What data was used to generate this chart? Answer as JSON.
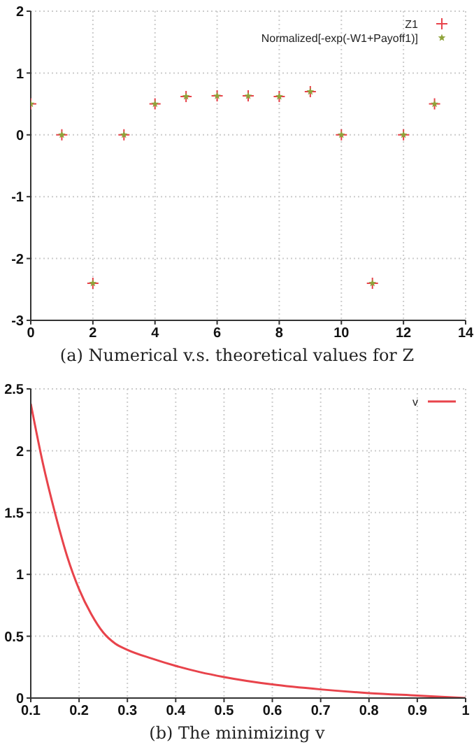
{
  "chart_data": [
    {
      "type": "scatter",
      "x": [
        0,
        1,
        2,
        3,
        4,
        5,
        6,
        7,
        8,
        9,
        10,
        11,
        12,
        13
      ],
      "series": [
        {
          "name": "Z1",
          "color": "#e8434b",
          "marker": "cross",
          "values": [
            0.5,
            0,
            -2.4,
            0,
            0.5,
            0.62,
            0.63,
            0.63,
            0.62,
            0.7,
            0,
            -2.4,
            0,
            0.5
          ]
        },
        {
          "name": "Normalized[-exp(-W1+Payoff1)]",
          "color": "#8fa33a",
          "marker": "star",
          "values": [
            0.5,
            0,
            -2.4,
            0,
            0.5,
            0.62,
            0.63,
            0.63,
            0.62,
            0.7,
            0,
            -2.4,
            0,
            0.5
          ]
        }
      ],
      "xlim": [
        0,
        14
      ],
      "xticks": [
        0,
        2,
        4,
        6,
        8,
        10,
        12,
        14
      ],
      "ylim": [
        -3,
        2
      ],
      "yticks": [
        -3,
        -2,
        -1,
        0,
        1,
        2
      ],
      "grid": true,
      "legend": "top right",
      "annotations": [
        "(a) Numerical v.s. theoretical values for Z"
      ]
    },
    {
      "type": "line",
      "x": [
        0.1,
        0.125,
        0.15,
        0.175,
        0.2,
        0.225,
        0.25,
        0.275,
        0.3,
        0.35,
        0.4,
        0.45,
        0.5,
        0.6,
        0.7,
        0.8,
        0.9,
        1
      ],
      "series": [
        {
          "name": "v",
          "color": "#e8434b",
          "values": [
            2.38,
            1.9,
            1.5,
            1.15,
            0.88,
            0.68,
            0.53,
            0.44,
            0.39,
            0.32,
            0.26,
            0.21,
            0.17,
            0.11,
            0.07,
            0.04,
            0.02,
            0
          ]
        }
      ],
      "xlim": [
        0.1,
        1
      ],
      "xticks": [
        0.1,
        0.2,
        0.3,
        0.4,
        0.5,
        0.6,
        0.7,
        0.8,
        0.9,
        1
      ],
      "ylim": [
        0,
        2.5
      ],
      "yticks": [
        0,
        0.5,
        1,
        1.5,
        2,
        2.5
      ],
      "grid": true,
      "legend": "top right",
      "marker": "none",
      "annotations": [
        "(b) The minimizing v"
      ]
    }
  ]
}
